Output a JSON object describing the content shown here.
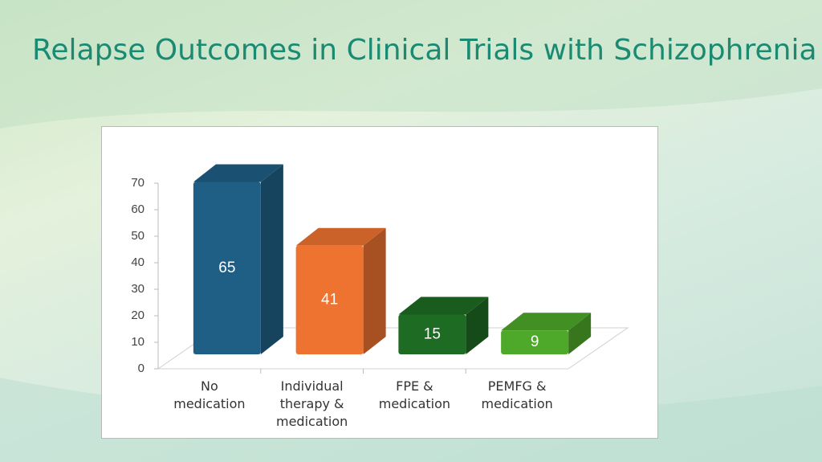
{
  "chart_data": {
    "type": "bar3d",
    "title": "Relapse Outcomes in Clinical Trials with Schizophrenia",
    "categories": [
      "No medication",
      "Individual therapy & medication",
      "FPE & medication",
      "PEMFG & medication"
    ],
    "values": [
      65,
      41,
      15,
      9
    ],
    "colors": [
      "#1f5f86",
      "#ee7330",
      "#1e6b23",
      "#4ea82a"
    ],
    "ylim": [
      0,
      70
    ],
    "yticks": [
      0,
      10,
      20,
      30,
      40,
      50,
      60,
      70
    ]
  }
}
